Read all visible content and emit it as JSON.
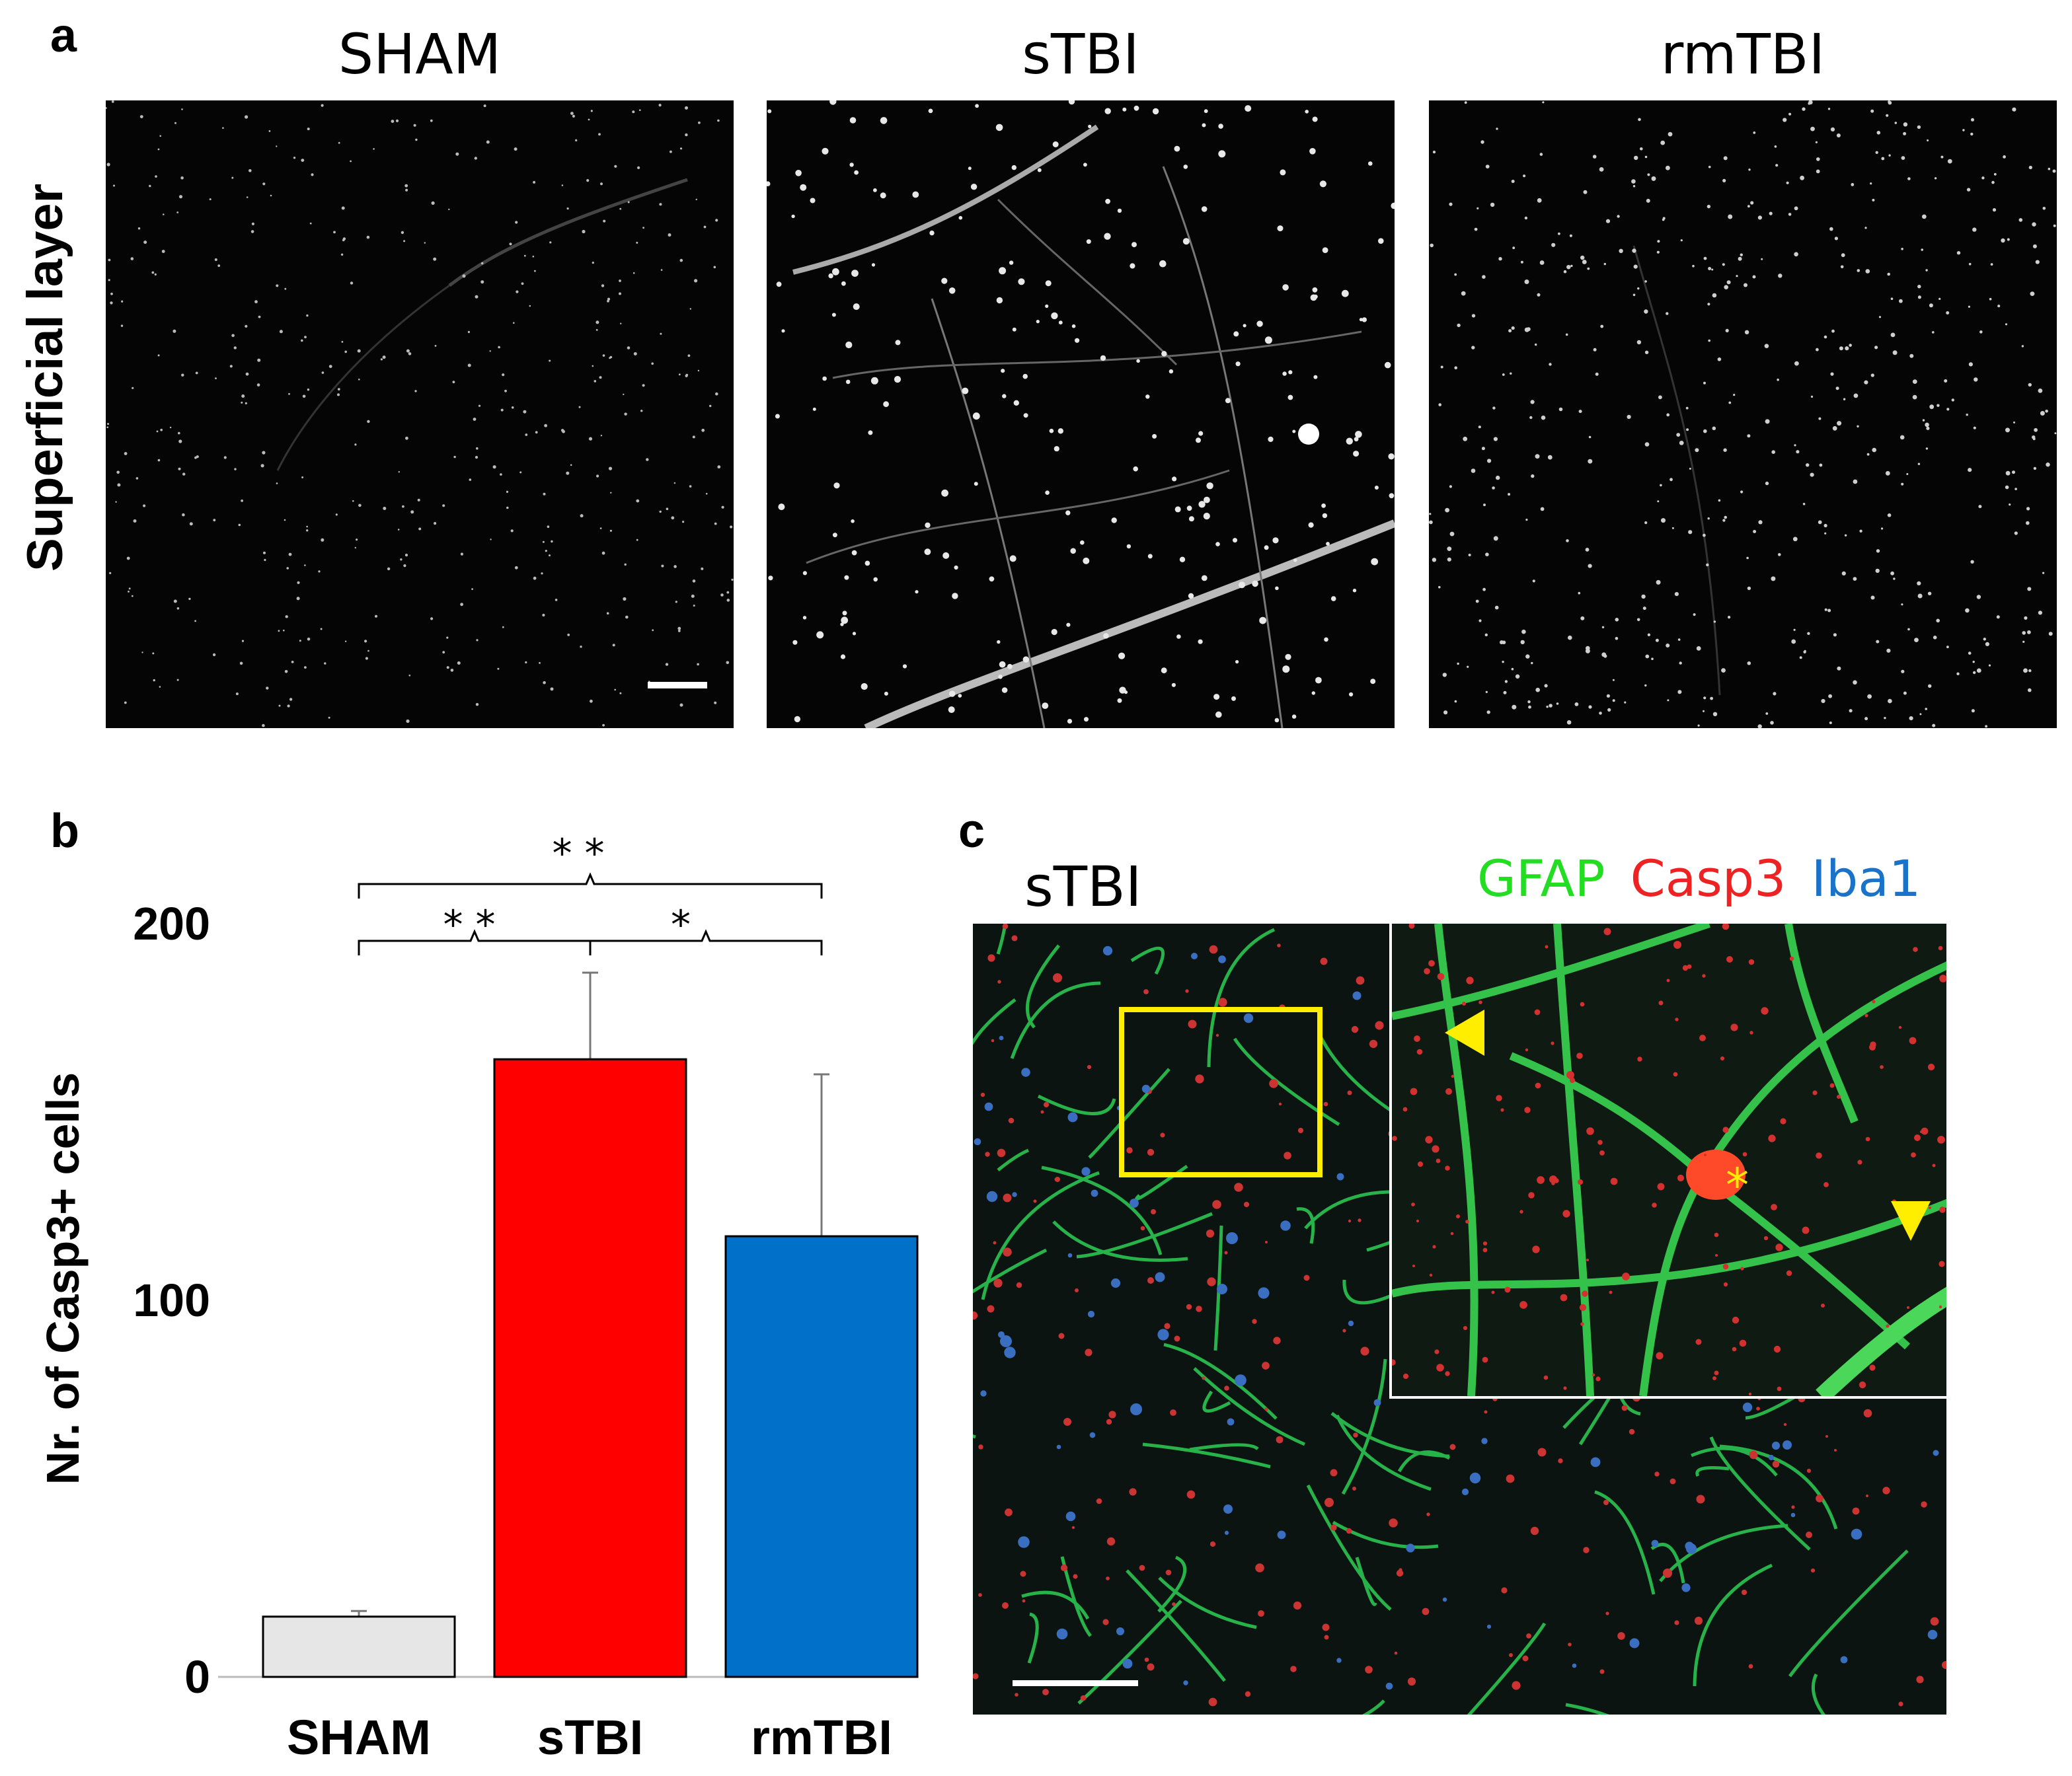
{
  "panel_a": {
    "letter": "a",
    "row_label": "Superficial layer",
    "titles": [
      "SHAM",
      "sTBI",
      "rmTBI"
    ]
  },
  "panel_b": {
    "letter": "b",
    "significance": {
      "top": "* *",
      "left": "* *",
      "right": "*"
    }
  },
  "panel_c": {
    "letter": "c",
    "title": "sTBI",
    "legend": [
      {
        "text": "GFAP",
        "color": "#22dd22"
      },
      {
        "text": "Casp3",
        "color": "#ee2222"
      },
      {
        "text": "Iba1",
        "color": "#1a73c8"
      }
    ]
  },
  "chart_data": {
    "type": "bar",
    "categories": [
      "SHAM",
      "sTBI",
      "rmTBI"
    ],
    "values": [
      16,
      164,
      117
    ],
    "errors": [
      1.5,
      23,
      43
    ],
    "colors": [
      "#e6e6e6",
      "#ff0000",
      "#0070c8"
    ],
    "xlabel": "",
    "ylabel": "Nr. of Casp3+ cells",
    "ylim": [
      0,
      200
    ],
    "yticks": [
      "0",
      "100",
      "200"
    ],
    "ytick_values": [
      0,
      100,
      200
    ]
  }
}
